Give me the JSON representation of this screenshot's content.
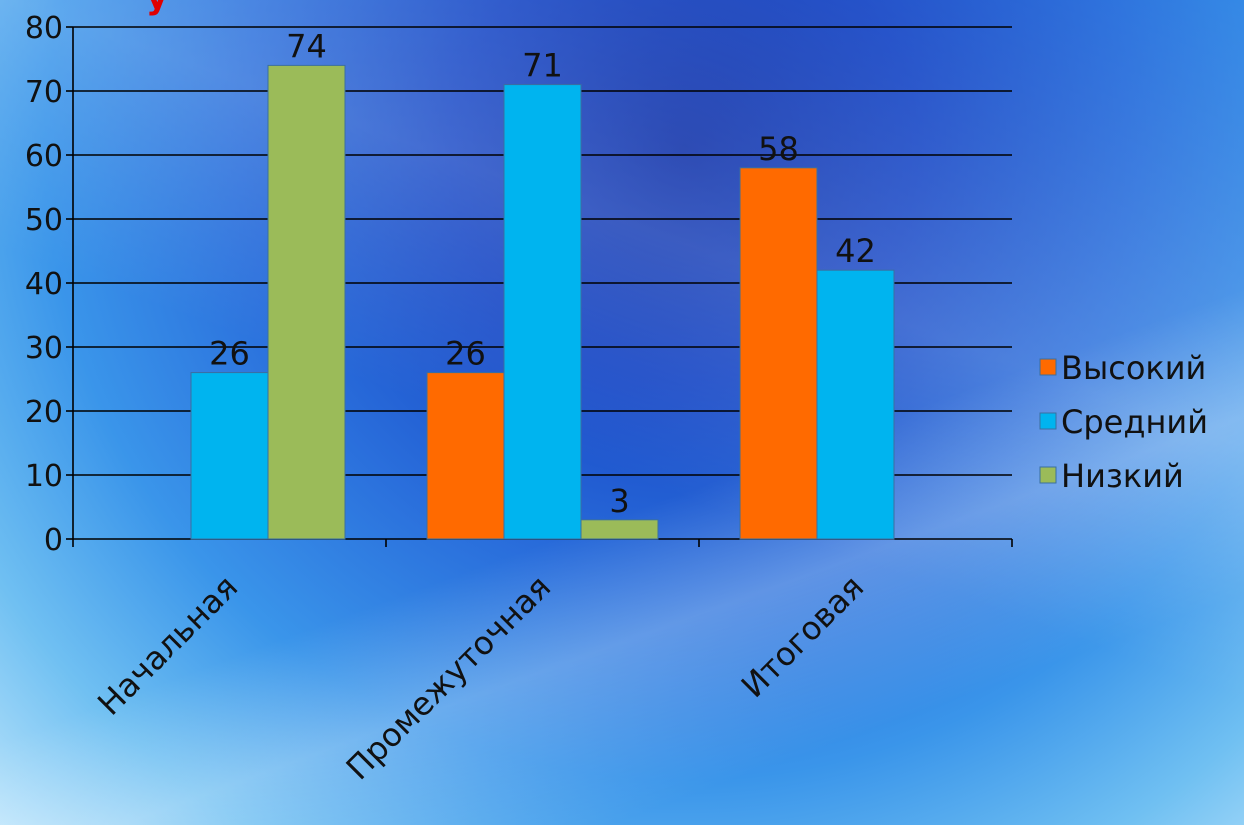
{
  "chart_data": {
    "type": "bar",
    "categories": [
      "Начальная",
      "Промежуточная",
      "Итоговая"
    ],
    "series": [
      {
        "name": "Высокий",
        "values": [
          null,
          26,
          58
        ],
        "color": "#FF6A00"
      },
      {
        "name": "Средний",
        "values": [
          26,
          71,
          42
        ],
        "color": "#00B4EF"
      },
      {
        "name": "Низкий",
        "values": [
          74,
          3,
          null
        ],
        "color": "#9BBB59"
      }
    ],
    "yticks": [
      "0",
      "10",
      "20",
      "30",
      "40",
      "50",
      "60",
      "70",
      "80"
    ],
    "ylim": [
      0,
      80
    ],
    "grid": true,
    "legend_position": "right",
    "accent_title_color": "#E00000"
  }
}
